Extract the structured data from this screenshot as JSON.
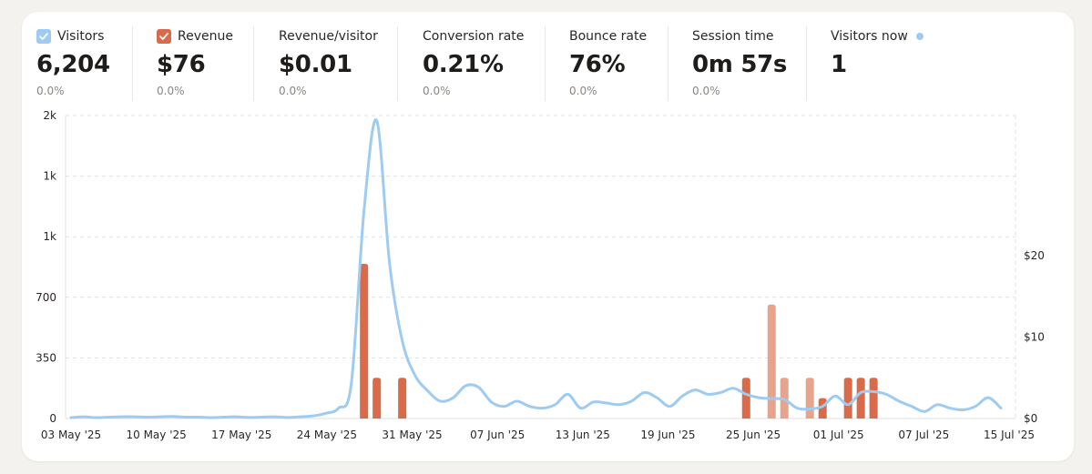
{
  "metrics": [
    {
      "label": "Visitors",
      "value": "6,204",
      "change": "0.0%",
      "checkbox": "checked",
      "checkbox_color": "#9ecbf2"
    },
    {
      "label": "Revenue",
      "value": "$76",
      "change": "0.0%",
      "checkbox": "checked",
      "checkbox_color": "#d96a4a"
    },
    {
      "label": "Revenue/visitor",
      "value": "$0.01",
      "change": "0.0%"
    },
    {
      "label": "Conversion rate",
      "value": "0.21%",
      "change": "0.0%"
    },
    {
      "label": "Bounce rate",
      "value": "76%",
      "change": "0.0%"
    },
    {
      "label": "Session time",
      "value": "0m 57s",
      "change": "0.0%"
    },
    {
      "label": "Visitors now",
      "value": "1",
      "live_dot_color": "#9ecbf2"
    }
  ],
  "chart_data": {
    "type": "line",
    "x_tick_labels": [
      "03 May '25",
      "10 May '25",
      "17 May '25",
      "24 May '25",
      "31 May '25",
      "07 Jun '25",
      "13 Jun '25",
      "19 Jun '25",
      "25 Jun '25",
      "01 Jul '25",
      "07 Jul '25",
      "15 Jul '25"
    ],
    "y_left_tick_labels": [
      "0",
      "350",
      "700",
      "1k",
      "1k",
      "2k"
    ],
    "y_left_range": [
      0,
      1750
    ],
    "y_right_tick_labels": [
      "$0",
      "$10",
      "$20"
    ],
    "y_right_range": [
      0,
      20
    ],
    "grid": "horizontal dashed",
    "colors": {
      "visitors": "#9ecbf2",
      "revenue": "#d96a4a",
      "revenue_light": "#e7a38c"
    },
    "series": [
      {
        "name": "Visitors",
        "type": "line",
        "axis": "left",
        "x": [
          "2025-05-03",
          "2025-05-04",
          "2025-05-05",
          "2025-05-06",
          "2025-05-07",
          "2025-05-08",
          "2025-05-09",
          "2025-05-10",
          "2025-05-11",
          "2025-05-12",
          "2025-05-13",
          "2025-05-14",
          "2025-05-15",
          "2025-05-16",
          "2025-05-17",
          "2025-05-18",
          "2025-05-19",
          "2025-05-20",
          "2025-05-21",
          "2025-05-22",
          "2025-05-23",
          "2025-05-24",
          "2025-05-25",
          "2025-05-26",
          "2025-05-27",
          "2025-05-28",
          "2025-05-29",
          "2025-05-30",
          "2025-05-31",
          "2025-06-01",
          "2025-06-02",
          "2025-06-03",
          "2025-06-04",
          "2025-06-05",
          "2025-06-06",
          "2025-06-07",
          "2025-06-08",
          "2025-06-09",
          "2025-06-10",
          "2025-06-11",
          "2025-06-12",
          "2025-06-13",
          "2025-06-14",
          "2025-06-15",
          "2025-06-16",
          "2025-06-17",
          "2025-06-18",
          "2025-06-19",
          "2025-06-20",
          "2025-06-21",
          "2025-06-22",
          "2025-06-23",
          "2025-06-24",
          "2025-06-25",
          "2025-06-26",
          "2025-06-27",
          "2025-06-28",
          "2025-06-29",
          "2025-06-30",
          "2025-07-01",
          "2025-07-02",
          "2025-07-03",
          "2025-07-04",
          "2025-07-05",
          "2025-07-06",
          "2025-07-07",
          "2025-07-08",
          "2025-07-09",
          "2025-07-10",
          "2025-07-11",
          "2025-07-12",
          "2025-07-13",
          "2025-07-14",
          "2025-07-15"
        ],
        "values": [
          5,
          10,
          5,
          8,
          10,
          10,
          8,
          10,
          12,
          8,
          8,
          5,
          8,
          10,
          6,
          8,
          10,
          6,
          10,
          15,
          30,
          60,
          200,
          1200,
          1720,
          900,
          450,
          250,
          160,
          100,
          120,
          190,
          180,
          95,
          70,
          100,
          70,
          60,
          80,
          140,
          60,
          95,
          90,
          80,
          100,
          150,
          120,
          70,
          130,
          165,
          140,
          150,
          175,
          140,
          120,
          115,
          110,
          60,
          55,
          70,
          130,
          80,
          150,
          155,
          140,
          100,
          70,
          40,
          80,
          60,
          50,
          70,
          120,
          60
        ]
      },
      {
        "name": "Revenue",
        "type": "bar",
        "axis": "right",
        "x": [
          "2025-05-26",
          "2025-05-27",
          "2025-05-29",
          "2025-06-25",
          "2025-06-27",
          "2025-06-28",
          "2025-06-30",
          "2025-07-01",
          "2025-07-03",
          "2025-07-04",
          "2025-07-05"
        ],
        "values": [
          19,
          5,
          5,
          5,
          14,
          5,
          5,
          2.5,
          5,
          5,
          5
        ],
        "shade": [
          "dark",
          "dark",
          "dark",
          "dark",
          "light",
          "light",
          "light",
          "dark",
          "dark",
          "dark",
          "dark"
        ]
      }
    ]
  }
}
